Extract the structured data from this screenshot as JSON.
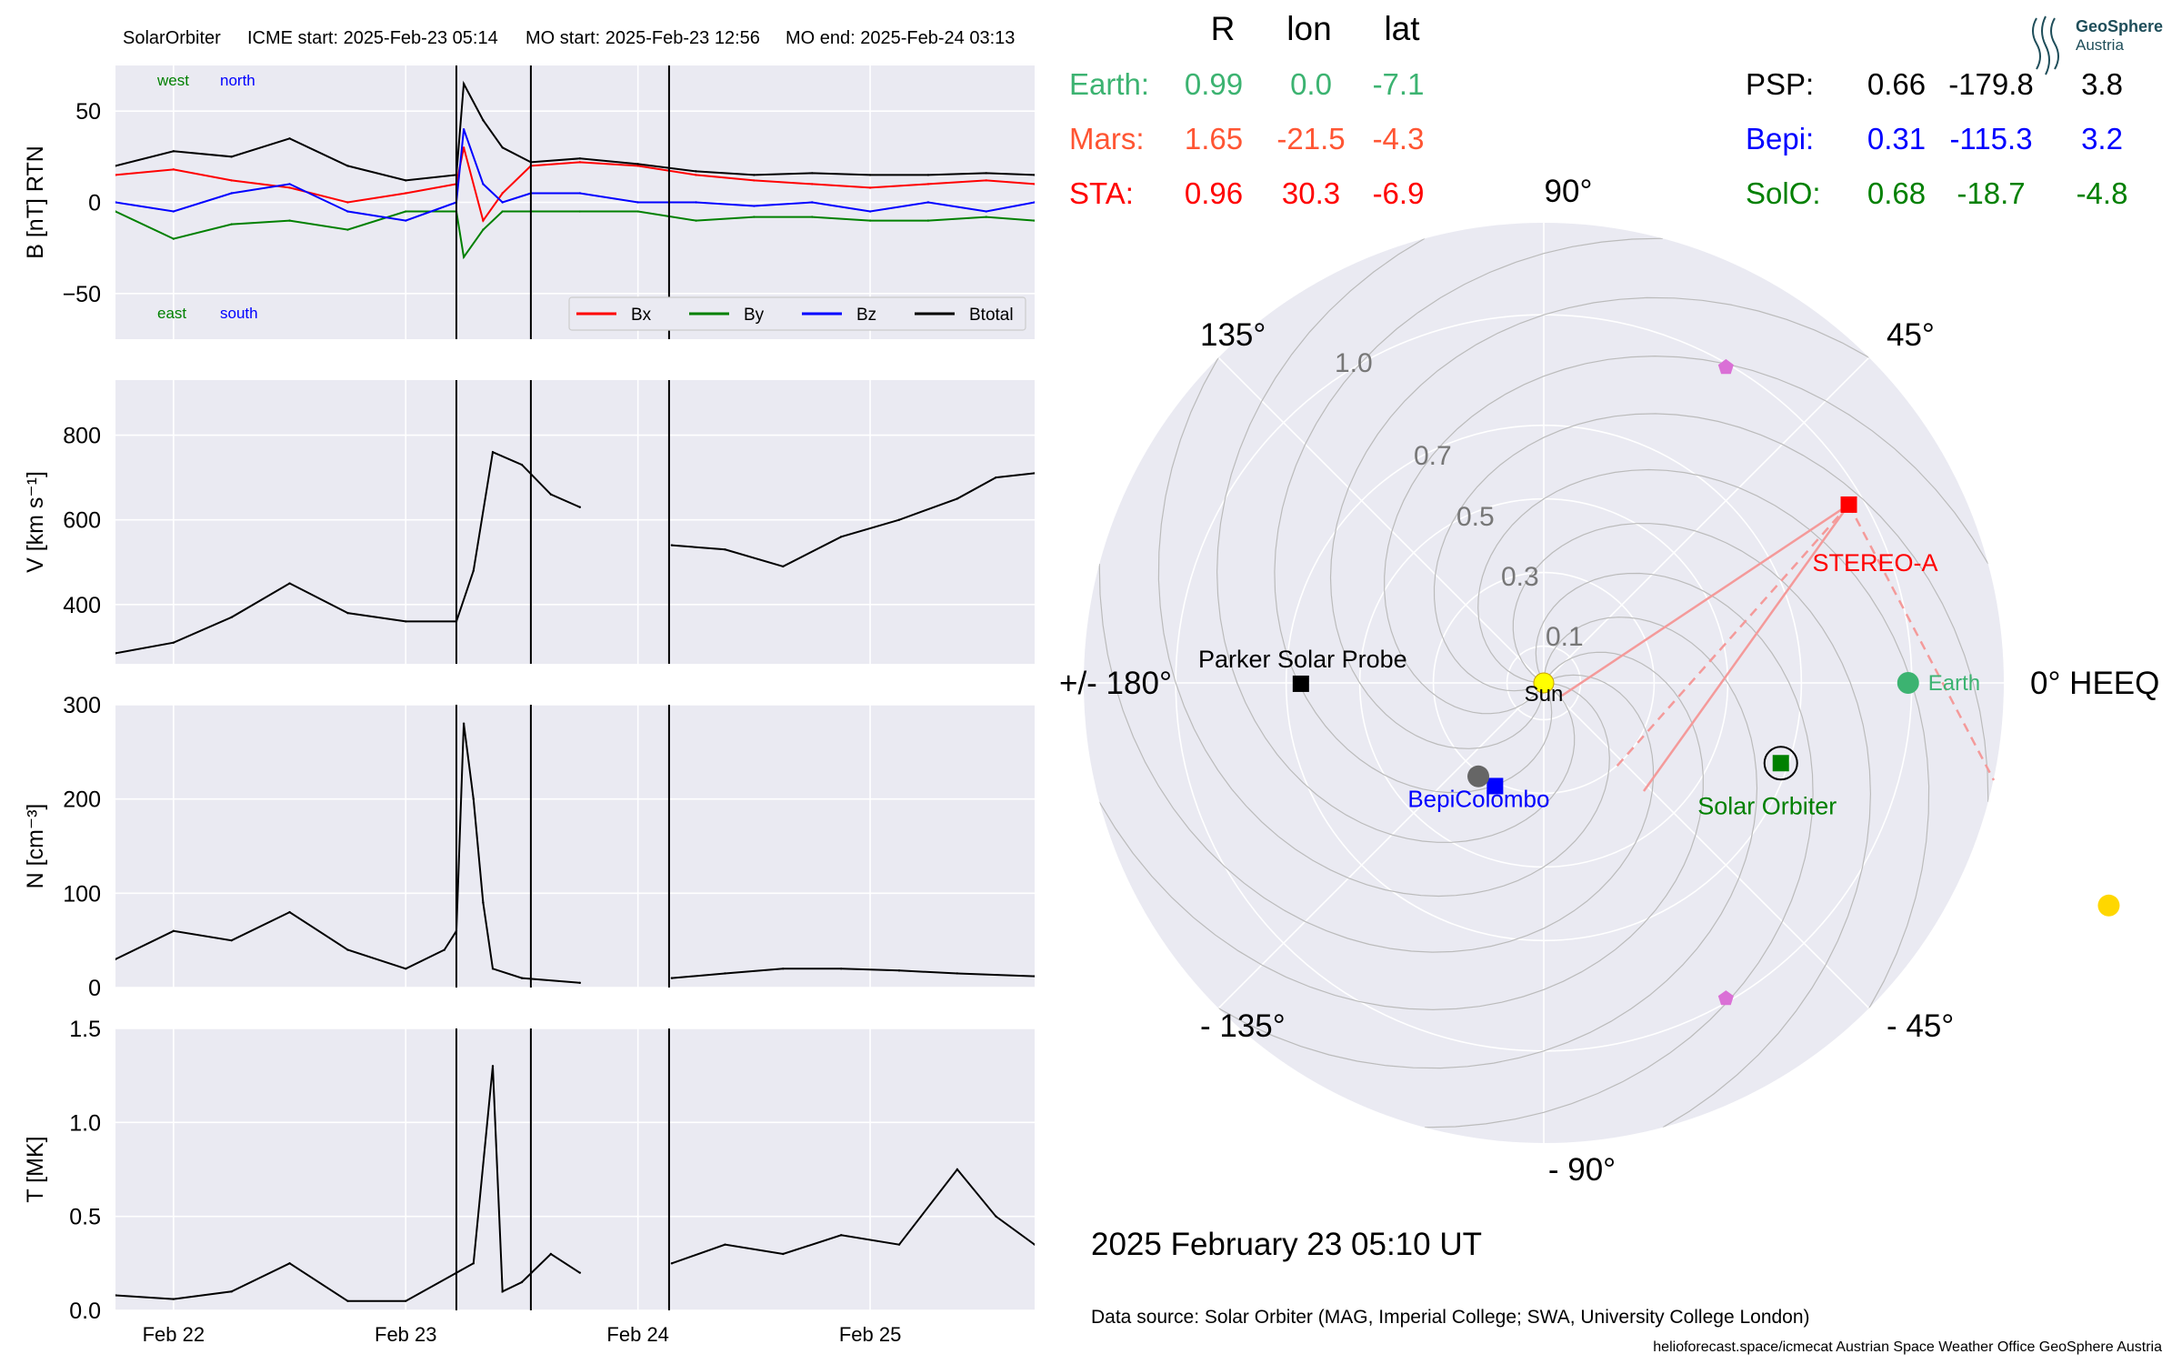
{
  "header": {
    "spacecraft": "SolarOrbiter",
    "icme_start": "ICME start: 2025-Feb-23 05:14",
    "mo_start": "MO start: 2025-Feb-23 12:56",
    "mo_end": "MO end: 2025-Feb-24 03:13"
  },
  "logo": {
    "line1": "GeoSphere",
    "line2": "Austria"
  },
  "position_table": {
    "headers": [
      "R",
      "lon",
      "lat"
    ],
    "left_rows": [
      {
        "name": "Earth:",
        "R": "0.99",
        "lon": "0.0",
        "lat": "-7.1",
        "color": "#3cb371"
      },
      {
        "name": "Mars:",
        "R": "1.65",
        "lon": "-21.5",
        "lat": "-4.3",
        "color": "#ff5533"
      },
      {
        "name": "STA:",
        "R": "0.96",
        "lon": "30.3",
        "lat": "-6.9",
        "color": "#ff0000"
      }
    ],
    "right_rows": [
      {
        "name": "PSP:",
        "R": "0.66",
        "lon": "-179.8",
        "lat": "3.8",
        "color": "#000000"
      },
      {
        "name": "Bepi:",
        "R": "0.31",
        "lon": "-115.3",
        "lat": "3.2",
        "color": "#0000ff"
      },
      {
        "name": "SolO:",
        "R": "0.68",
        "lon": "-18.7",
        "lat": "-4.8",
        "color": "#008000"
      }
    ]
  },
  "footer": {
    "datetime": "2025 February 23  05:10 UT",
    "data_source": "Data source: Solar Orbiter (MAG, Imperial College; SWA, University College London)",
    "credits": "helioforecast.space/icmecat   Austrian Space Weather Office   GeoSphere Austria"
  },
  "colors": {
    "panel_bg": "#eaeaf2",
    "grid": "#ffffff",
    "bx": "#ff0000",
    "by": "#008000",
    "bz": "#0000ff",
    "btotal": "#000000",
    "sta_lines": "#f49a9a"
  },
  "chart_data": [
    {
      "type": "line",
      "panel": "B",
      "ylabel": "B [nT] RTN",
      "ylim": [
        -75,
        75
      ],
      "yticks": [
        -50,
        0,
        50
      ],
      "xlim": [
        "2025-02-21T18:00",
        "2025-02-25T17:00"
      ],
      "xticks": [
        "Feb 22",
        "Feb 23",
        "Feb 24",
        "Feb 25"
      ],
      "grid": true,
      "annotations": {
        "top_left": [
          "west",
          "north"
        ],
        "bottom_left": [
          "east",
          "south"
        ]
      },
      "annotation_colors": [
        "#008000",
        "#0000ff"
      ],
      "event_lines": [
        "2025-02-23T05:14",
        "2025-02-23T12:56",
        "2025-02-24T03:13"
      ],
      "legend": {
        "placement": "lower-right"
      },
      "series": [
        {
          "name": "Bx",
          "color": "#ff0000",
          "x": [
            "2025-02-21T18:00",
            "2025-02-22T00:00",
            "2025-02-22T06:00",
            "2025-02-22T12:00",
            "2025-02-22T18:00",
            "2025-02-23T00:00",
            "2025-02-23T05:14",
            "2025-02-23T06:00",
            "2025-02-23T08:00",
            "2025-02-23T10:00",
            "2025-02-23T12:56",
            "2025-02-23T18:00",
            "2025-02-24T00:00",
            "2025-02-24T06:00",
            "2025-02-24T12:00",
            "2025-02-24T18:00",
            "2025-02-25T00:00",
            "2025-02-25T06:00",
            "2025-02-25T12:00",
            "2025-02-25T17:00"
          ],
          "y": [
            15,
            18,
            12,
            8,
            0,
            5,
            10,
            30,
            -10,
            5,
            20,
            22,
            20,
            15,
            12,
            10,
            8,
            10,
            12,
            10
          ]
        },
        {
          "name": "By",
          "color": "#008000",
          "x": [
            "2025-02-21T18:00",
            "2025-02-22T00:00",
            "2025-02-22T06:00",
            "2025-02-22T12:00",
            "2025-02-22T18:00",
            "2025-02-23T00:00",
            "2025-02-23T05:14",
            "2025-02-23T06:00",
            "2025-02-23T08:00",
            "2025-02-23T10:00",
            "2025-02-23T12:56",
            "2025-02-23T18:00",
            "2025-02-24T00:00",
            "2025-02-24T06:00",
            "2025-02-24T12:00",
            "2025-02-24T18:00",
            "2025-02-25T00:00",
            "2025-02-25T06:00",
            "2025-02-25T12:00",
            "2025-02-25T17:00"
          ],
          "y": [
            -5,
            -20,
            -12,
            -10,
            -15,
            -5,
            -5,
            -30,
            -15,
            -5,
            -5,
            -5,
            -5,
            -10,
            -8,
            -8,
            -10,
            -10,
            -8,
            -10
          ]
        },
        {
          "name": "Bz",
          "color": "#0000ff",
          "x": [
            "2025-02-21T18:00",
            "2025-02-22T00:00",
            "2025-02-22T06:00",
            "2025-02-22T12:00",
            "2025-02-22T18:00",
            "2025-02-23T00:00",
            "2025-02-23T05:14",
            "2025-02-23T06:00",
            "2025-02-23T08:00",
            "2025-02-23T10:00",
            "2025-02-23T12:56",
            "2025-02-23T18:00",
            "2025-02-24T00:00",
            "2025-02-24T06:00",
            "2025-02-24T12:00",
            "2025-02-24T18:00",
            "2025-02-25T00:00",
            "2025-02-25T06:00",
            "2025-02-25T12:00",
            "2025-02-25T17:00"
          ],
          "y": [
            0,
            -5,
            5,
            10,
            -5,
            -10,
            0,
            40,
            10,
            0,
            5,
            5,
            0,
            0,
            -2,
            0,
            -5,
            0,
            -5,
            0
          ]
        },
        {
          "name": "Btotal",
          "color": "#000000",
          "x": [
            "2025-02-21T18:00",
            "2025-02-22T00:00",
            "2025-02-22T06:00",
            "2025-02-22T12:00",
            "2025-02-22T18:00",
            "2025-02-23T00:00",
            "2025-02-23T05:14",
            "2025-02-23T06:00",
            "2025-02-23T08:00",
            "2025-02-23T10:00",
            "2025-02-23T12:56",
            "2025-02-23T18:00",
            "2025-02-24T00:00",
            "2025-02-24T06:00",
            "2025-02-24T12:00",
            "2025-02-24T18:00",
            "2025-02-25T00:00",
            "2025-02-25T06:00",
            "2025-02-25T12:00",
            "2025-02-25T17:00"
          ],
          "y": [
            20,
            28,
            25,
            35,
            20,
            12,
            15,
            65,
            45,
            30,
            22,
            24,
            21,
            17,
            15,
            16,
            15,
            15,
            16,
            15
          ]
        }
      ]
    },
    {
      "type": "line",
      "panel": "V",
      "ylabel": "V [km s⁻¹]",
      "ylim": [
        260,
        930
      ],
      "yticks": [
        400,
        600,
        800
      ],
      "xlim": [
        "2025-02-21T18:00",
        "2025-02-25T17:00"
      ],
      "grid": true,
      "event_lines": [
        "2025-02-23T05:14",
        "2025-02-23T12:56",
        "2025-02-24T03:13"
      ],
      "series": [
        {
          "name": "",
          "color": "#000000",
          "segments": [
            {
              "x": [
                "2025-02-21T18:00",
                "2025-02-22T00:00",
                "2025-02-22T06:00",
                "2025-02-22T12:00",
                "2025-02-22T18:00",
                "2025-02-23T00:00",
                "2025-02-23T05:14",
                "2025-02-23T07:00",
                "2025-02-23T09:00",
                "2025-02-23T12:00",
                "2025-02-23T15:00",
                "2025-02-23T18:00"
              ],
              "y": [
                285,
                310,
                370,
                450,
                380,
                360,
                360,
                480,
                760,
                730,
                660,
                630
              ]
            },
            {
              "x": [
                "2025-02-24T03:30",
                "2025-02-24T09:00",
                "2025-02-24T15:00",
                "2025-02-24T21:00",
                "2025-02-25T03:00",
                "2025-02-25T09:00",
                "2025-02-25T13:00",
                "2025-02-25T17:00"
              ],
              "y": [
                540,
                530,
                490,
                560,
                600,
                650,
                700,
                710
              ]
            }
          ]
        }
      ]
    },
    {
      "type": "line",
      "panel": "N",
      "ylabel": "N [cm⁻³]",
      "ylim": [
        0,
        300
      ],
      "yticks": [
        0,
        100,
        200,
        300
      ],
      "xlim": [
        "2025-02-21T18:00",
        "2025-02-25T17:00"
      ],
      "grid": true,
      "event_lines": [
        "2025-02-23T05:14",
        "2025-02-23T12:56",
        "2025-02-24T03:13"
      ],
      "series": [
        {
          "name": "",
          "color": "#000000",
          "segments": [
            {
              "x": [
                "2025-02-21T18:00",
                "2025-02-22T00:00",
                "2025-02-22T06:00",
                "2025-02-22T12:00",
                "2025-02-22T18:00",
                "2025-02-23T00:00",
                "2025-02-23T04:00",
                "2025-02-23T05:14",
                "2025-02-23T06:00",
                "2025-02-23T07:00",
                "2025-02-23T08:00",
                "2025-02-23T09:00",
                "2025-02-23T12:00",
                "2025-02-23T18:00"
              ],
              "y": [
                30,
                60,
                50,
                80,
                40,
                20,
                40,
                60,
                280,
                200,
                90,
                20,
                10,
                5
              ]
            },
            {
              "x": [
                "2025-02-24T03:30",
                "2025-02-24T09:00",
                "2025-02-24T15:00",
                "2025-02-24T21:00",
                "2025-02-25T03:00",
                "2025-02-25T09:00",
                "2025-02-25T17:00"
              ],
              "y": [
                10,
                15,
                20,
                20,
                18,
                15,
                12
              ]
            }
          ]
        }
      ]
    },
    {
      "type": "line",
      "panel": "T",
      "ylabel": "T [MK]",
      "ylim": [
        0,
        1.5
      ],
      "yticks": [
        0.0,
        0.5,
        1.0,
        1.5
      ],
      "xlim": [
        "2025-02-21T18:00",
        "2025-02-25T17:00"
      ],
      "xticks": [
        "Feb 22",
        "Feb 23",
        "Feb 24",
        "Feb 25"
      ],
      "grid": true,
      "event_lines": [
        "2025-02-23T05:14",
        "2025-02-23T12:56",
        "2025-02-24T03:13"
      ],
      "series": [
        {
          "name": "",
          "color": "#000000",
          "segments": [
            {
              "x": [
                "2025-02-21T18:00",
                "2025-02-22T00:00",
                "2025-02-22T06:00",
                "2025-02-22T12:00",
                "2025-02-22T18:00",
                "2025-02-23T00:00",
                "2025-02-23T05:14",
                "2025-02-23T07:00",
                "2025-02-23T09:00",
                "2025-02-23T10:00",
                "2025-02-23T12:00",
                "2025-02-23T15:00",
                "2025-02-23T18:00"
              ],
              "y": [
                0.08,
                0.06,
                0.1,
                0.25,
                0.05,
                0.05,
                0.2,
                0.25,
                1.3,
                0.1,
                0.15,
                0.3,
                0.2
              ]
            },
            {
              "x": [
                "2025-02-24T03:30",
                "2025-02-24T09:00",
                "2025-02-24T15:00",
                "2025-02-24T21:00",
                "2025-02-25T03:00",
                "2025-02-25T09:00",
                "2025-02-25T13:00",
                "2025-02-25T17:00"
              ],
              "y": [
                0.25,
                0.35,
                0.3,
                0.4,
                0.35,
                0.75,
                0.5,
                0.35
              ]
            }
          ]
        }
      ]
    },
    {
      "type": "scatter",
      "panel": "polar",
      "coordinate_system": "HEEQ polar",
      "angle_labels": [
        "0° HEEQ",
        "45°",
        "90°",
        "135°",
        "+/- 180°",
        "- 135°",
        "- 90°",
        "- 45°"
      ],
      "radius_labels": [
        "0.1",
        "0.3",
        "0.5",
        "0.7",
        "1.0"
      ],
      "points": [
        {
          "name": "Sun",
          "r": 0.0,
          "lon": 0.0,
          "marker": "circle",
          "color": "#ffff00",
          "label": "Sun"
        },
        {
          "name": "Earth",
          "r": 0.99,
          "lon": 0.0,
          "marker": "circle",
          "color": "#3cb371",
          "label": "Earth"
        },
        {
          "name": "Mars",
          "r": 1.65,
          "lon": -21.5,
          "marker": "circle",
          "color": "#ffd700",
          "label": ""
        },
        {
          "name": "STEREO-A",
          "r": 0.96,
          "lon": 30.3,
          "marker": "square",
          "color": "#ff0000",
          "label": "STEREO-A"
        },
        {
          "name": "Parker Solar Probe",
          "r": 0.66,
          "lon": -179.8,
          "marker": "square",
          "color": "#000000",
          "label": "Parker Solar Probe"
        },
        {
          "name": "BepiColombo",
          "r": 0.31,
          "lon": -115.3,
          "marker": "square",
          "color": "#0000ff",
          "label": "BepiColombo"
        },
        {
          "name": "Solar Orbiter",
          "r": 0.68,
          "lon": -18.7,
          "marker": "square",
          "color": "#008000",
          "label": "Solar Orbiter"
        },
        {
          "name": "Mercury",
          "r": 0.31,
          "lon": -125.0,
          "marker": "circle",
          "color": "#666666",
          "label": ""
        },
        {
          "name": "L4",
          "r": 0.99,
          "lon": 60.0,
          "marker": "pentagon",
          "color": "#da70d6",
          "label": ""
        },
        {
          "name": "L5",
          "r": 0.99,
          "lon": -60.0,
          "marker": "pentagon",
          "color": "#da70d6",
          "label": ""
        }
      ]
    }
  ]
}
